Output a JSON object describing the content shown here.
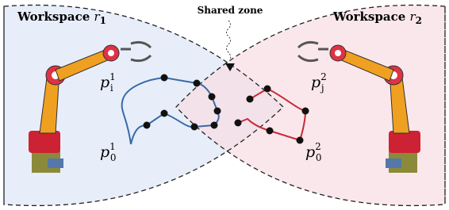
{
  "workspaces": [
    {
      "label": "Workspace",
      "robot": "r",
      "index": "1"
    },
    {
      "label": "Workspace",
      "robot": "r",
      "index": "2"
    }
  ],
  "shared_zone": {
    "label": "Shared zone"
  },
  "points": [
    {
      "symbol": "p",
      "sup": "1",
      "sub": "i"
    },
    {
      "symbol": "p",
      "sup": "1",
      "sub": "0"
    },
    {
      "symbol": "p",
      "sup": "2",
      "sub": "j"
    },
    {
      "symbol": "p",
      "sup": "2",
      "sub": "0"
    }
  ]
}
